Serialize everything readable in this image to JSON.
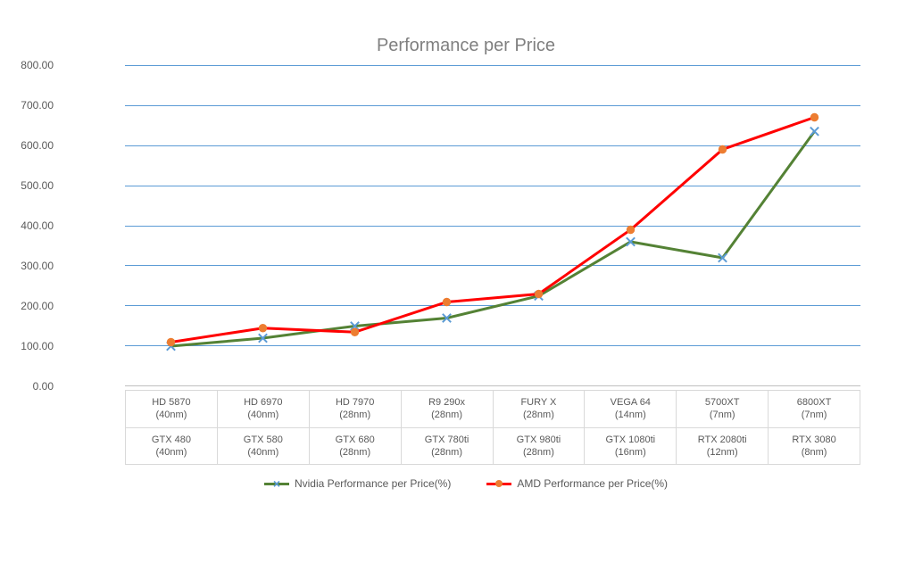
{
  "chart": {
    "type": "line",
    "title": "Performance per Price",
    "title_fontsize": 20,
    "title_color": "#7f7f7f",
    "background_color": "#ffffff",
    "grid_color": "#5b9bd5",
    "axis_color": "#bfbfbf",
    "tick_label_color": "#595959",
    "tick_fontsize": 12,
    "ylim": [
      0,
      800
    ],
    "ytick_step": 100,
    "yticks": [
      "0.00",
      "100.00",
      "200.00",
      "300.00",
      "400.00",
      "500.00",
      "600.00",
      "700.00",
      "800.00"
    ],
    "categories_top": [
      "HD 5870\n(40nm)",
      "HD 6970\n(40nm)",
      "HD 7970\n(28nm)",
      "R9 290x\n(28nm)",
      "FURY X\n(28nm)",
      "VEGA 64\n(14nm)",
      "5700XT\n(7nm)",
      "6800XT\n(7nm)"
    ],
    "categories_bottom": [
      "GTX 480\n(40nm)",
      "GTX 580\n(40nm)",
      "GTX 680\n(28nm)",
      "GTX 780ti\n(28nm)",
      "GTX 980ti\n(28nm)",
      "GTX 1080ti\n(16nm)",
      "RTX 2080ti\n(12nm)",
      "RTX 3080\n(8nm)"
    ],
    "series": [
      {
        "name": "Nvidia Performance per Price(%)",
        "values": [
          100,
          120,
          150,
          170,
          225,
          360,
          320,
          635
        ],
        "color": "#548235",
        "line_width": 3,
        "marker": "x",
        "marker_size": 7,
        "marker_color": "#5b9bd5"
      },
      {
        "name": "AMD Performance per Price(%)",
        "values": [
          110,
          145,
          135,
          210,
          230,
          390,
          590,
          670
        ],
        "color": "#ff0000",
        "line_width": 3,
        "marker": "circle",
        "marker_size": 6,
        "marker_color": "#ed7d31"
      }
    ],
    "x_table_border_color": "#d9d9d9",
    "x_label_fontsize": 11
  }
}
